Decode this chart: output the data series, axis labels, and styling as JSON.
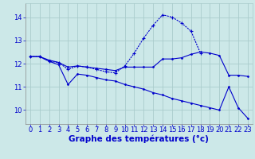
{
  "bg_color": "#cce8e8",
  "grid_color": "#aacccc",
  "line_color": "#0000cc",
  "xlabel": "Graphe des températures (°c)",
  "xlabel_fontsize": 7.5,
  "tick_fontsize": 6.0,
  "yticks": [
    10,
    11,
    12,
    13,
    14
  ],
  "xlim": [
    -0.5,
    23.5
  ],
  "ylim": [
    9.4,
    14.6
  ],
  "series1_x": [
    0,
    1,
    2,
    3,
    4,
    5,
    6,
    7,
    8,
    9,
    10,
    11,
    12,
    13,
    14,
    15,
    16,
    17,
    18,
    19,
    20,
    21,
    22,
    23
  ],
  "series1_y": [
    12.3,
    12.3,
    12.15,
    12.05,
    11.85,
    11.9,
    11.85,
    11.8,
    11.75,
    11.7,
    11.85,
    11.85,
    11.85,
    11.85,
    12.2,
    12.2,
    12.25,
    12.4,
    12.5,
    12.45,
    12.35,
    11.5,
    11.5,
    11.45
  ],
  "series2_x": [
    0,
    1,
    2,
    3,
    4,
    5,
    6,
    7,
    8,
    9,
    10,
    11,
    12,
    13,
    14,
    15,
    16,
    17,
    18
  ],
  "series2_y": [
    12.3,
    12.3,
    12.1,
    12.05,
    11.75,
    11.9,
    11.85,
    11.75,
    11.65,
    11.6,
    11.9,
    12.45,
    13.1,
    13.65,
    14.1,
    14.0,
    13.75,
    13.4,
    12.45
  ],
  "series3_x": [
    0,
    1,
    2,
    3,
    4,
    5,
    6,
    7,
    8,
    9,
    10,
    11,
    12,
    13,
    14,
    15,
    16,
    17,
    18,
    19,
    20,
    21,
    22,
    23
  ],
  "series3_y": [
    12.3,
    12.3,
    12.1,
    11.95,
    11.1,
    11.55,
    11.5,
    11.4,
    11.3,
    11.25,
    11.1,
    11.0,
    10.9,
    10.75,
    10.65,
    10.5,
    10.4,
    10.3,
    10.2,
    10.1,
    10.0,
    11.0,
    10.1,
    9.65
  ]
}
